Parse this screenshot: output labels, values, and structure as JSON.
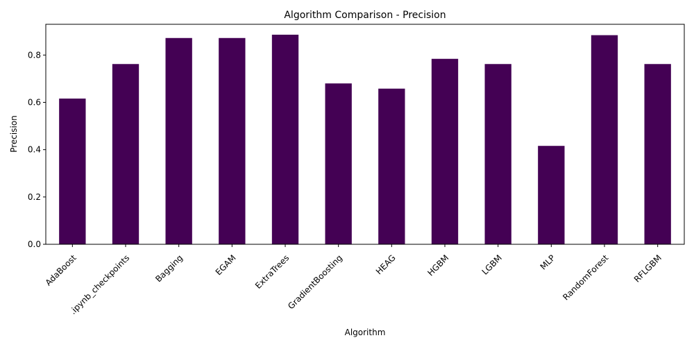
{
  "chart_data": {
    "type": "bar",
    "title": "Algorithm Comparison - Precision",
    "xlabel": "Algorithm",
    "ylabel": "Precision",
    "categories": [
      "AdaBoost",
      ".ipynb_checkpoints",
      "Bagging",
      "EGAM",
      "ExtraTrees",
      "GradientBoosting",
      "HEAG",
      "HGBM",
      "LGBM",
      "MLP",
      "RandomForest",
      "RFLGBM"
    ],
    "values": [
      0.616,
      0.762,
      0.872,
      0.872,
      0.886,
      0.68,
      0.658,
      0.784,
      0.762,
      0.416,
      0.884,
      0.762
    ],
    "ylim": [
      0,
      0.93
    ],
    "yticks": [
      0.0,
      0.2,
      0.4,
      0.6,
      0.8
    ],
    "ytick_labels": [
      "0.0",
      "0.2",
      "0.4",
      "0.6",
      "0.8"
    ],
    "bar_color": "#440154",
    "grid": false,
    "legend": false
  }
}
